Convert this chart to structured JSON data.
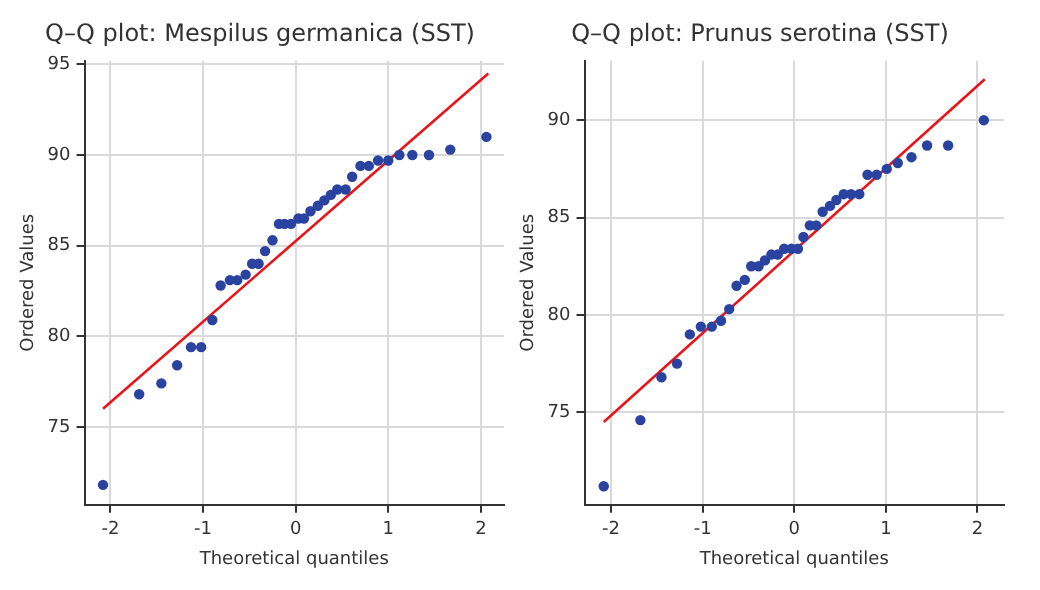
{
  "chart_data": [
    {
      "type": "scatter",
      "title": "Q–Q plot: Mespilus germanica (SST)",
      "xlabel": "Theoretical quantiles",
      "ylabel": "Ordered Values",
      "xlim": [
        -2.28,
        2.25
      ],
      "ylim": [
        70.7,
        95.2
      ],
      "xticks": [
        -2,
        -1,
        0,
        1,
        2
      ],
      "yticks": [
        75,
        80,
        85,
        90,
        95
      ],
      "grid": true,
      "marker": "circle",
      "series": [
        {
          "color": "#2a43a0",
          "x": [
            -2.08,
            -1.69,
            -1.45,
            -1.28,
            -1.13,
            -1.02,
            -0.9,
            -0.81,
            -0.71,
            -0.63,
            -0.54,
            -0.47,
            -0.4,
            -0.33,
            -0.25,
            -0.18,
            -0.12,
            -0.05,
            0.03,
            0.09,
            0.16,
            0.24,
            0.31,
            0.38,
            0.45,
            0.54,
            0.61,
            0.7,
            0.79,
            0.89,
            1.0,
            1.12,
            1.26,
            1.44,
            1.67,
            2.06
          ],
          "values": [
            71.8,
            76.8,
            77.4,
            78.4,
            79.4,
            79.4,
            80.9,
            82.8,
            83.1,
            83.1,
            83.4,
            84.0,
            84.0,
            84.7,
            85.3,
            86.2,
            86.2,
            86.2,
            86.5,
            86.5,
            86.9,
            87.2,
            87.5,
            87.8,
            88.1,
            88.1,
            88.8,
            89.4,
            89.4,
            89.7,
            89.7,
            90.0,
            90.0,
            90.0,
            90.3,
            91.0
          ]
        },
        {
          "type": "line",
          "color": "#e8141a",
          "marker": "none",
          "x": [
            -2.08,
            2.08
          ],
          "values": [
            76.0,
            94.5
          ]
        }
      ]
    },
    {
      "type": "scatter",
      "title": "Q–Q plot: Prunus serotina (SST)",
      "xlabel": "Theoretical quantiles",
      "ylabel": "Ordered Values",
      "xlim": [
        -2.29,
        2.29
      ],
      "ylim": [
        70.25,
        93.05
      ],
      "xticks": [
        -2,
        -1,
        0,
        1,
        2
      ],
      "yticks": [
        75,
        80,
        85,
        90
      ],
      "grid": true,
      "marker": "circle",
      "series": [
        {
          "color": "#2a43a0",
          "x": [
            -2.08,
            -1.68,
            -1.45,
            -1.28,
            -1.14,
            -1.02,
            -0.9,
            -0.8,
            -0.71,
            -0.63,
            -0.54,
            -0.47,
            -0.39,
            -0.32,
            -0.25,
            -0.18,
            -0.11,
            -0.03,
            0.04,
            0.1,
            0.17,
            0.24,
            0.31,
            0.39,
            0.46,
            0.54,
            0.62,
            0.71,
            0.8,
            0.9,
            1.01,
            1.13,
            1.28,
            1.45,
            1.68,
            2.07
          ],
          "values": [
            71.2,
            74.6,
            76.8,
            77.5,
            79.0,
            79.4,
            79.4,
            79.7,
            80.3,
            81.5,
            81.8,
            82.5,
            82.5,
            82.8,
            83.1,
            83.1,
            83.4,
            83.4,
            83.4,
            84.0,
            84.6,
            84.6,
            85.3,
            85.6,
            85.9,
            86.2,
            86.2,
            86.2,
            87.2,
            87.2,
            87.5,
            87.8,
            88.1,
            88.7,
            88.7,
            90.0
          ]
        },
        {
          "type": "line",
          "color": "#e8141a",
          "marker": "none",
          "x": [
            -2.08,
            2.08
          ],
          "values": [
            74.5,
            92.1
          ]
        }
      ]
    }
  ]
}
